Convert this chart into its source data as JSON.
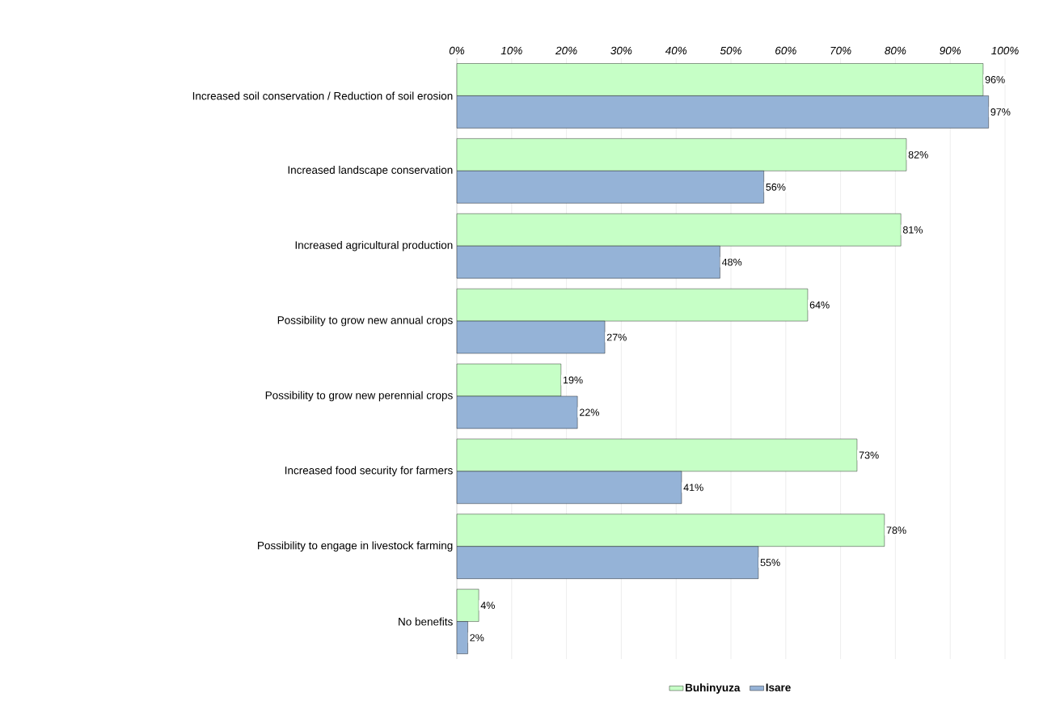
{
  "chart_data": {
    "type": "bar",
    "orientation": "horizontal",
    "categories": [
      "Increased soil conservation / Reduction of soil erosion",
      "Increased landscape conservation",
      "Increased agricultural production",
      "Possibility to grow new annual crops",
      "Possibility to grow new perennial crops",
      "Increased food security for farmers",
      "Possibility to engage in livestock farming",
      "No benefits"
    ],
    "series": [
      {
        "name": "Buhinyuza",
        "color": "#c6ffc6",
        "values": [
          96,
          82,
          81,
          64,
          19,
          73,
          78,
          4
        ],
        "value_labels": [
          "96%",
          "82%",
          "81%",
          "64%",
          "19%",
          "73%",
          "78%",
          "4%"
        ]
      },
      {
        "name": "Isare",
        "color": "#95b3d7",
        "values": [
          97,
          56,
          48,
          27,
          22,
          41,
          55,
          2
        ],
        "value_labels": [
          "97%",
          "56%",
          "48%",
          "27%",
          "22%",
          "41%",
          "55%",
          "2%"
        ]
      }
    ],
    "xlim": [
      0,
      100
    ],
    "xticks": [
      {
        "value": 0,
        "label": "0%"
      },
      {
        "value": 10,
        "label": "10%"
      },
      {
        "value": 20,
        "label": "20%"
      },
      {
        "value": 30,
        "label": "30%"
      },
      {
        "value": 40,
        "label": "40%"
      },
      {
        "value": 50,
        "label": "50%"
      },
      {
        "value": 60,
        "label": "60%"
      },
      {
        "value": 70,
        "label": "70%"
      },
      {
        "value": 80,
        "label": "80%"
      },
      {
        "value": 90,
        "label": "90%"
      },
      {
        "value": 100,
        "label": "100%"
      }
    ],
    "grid": "x",
    "legend": "bottom"
  }
}
